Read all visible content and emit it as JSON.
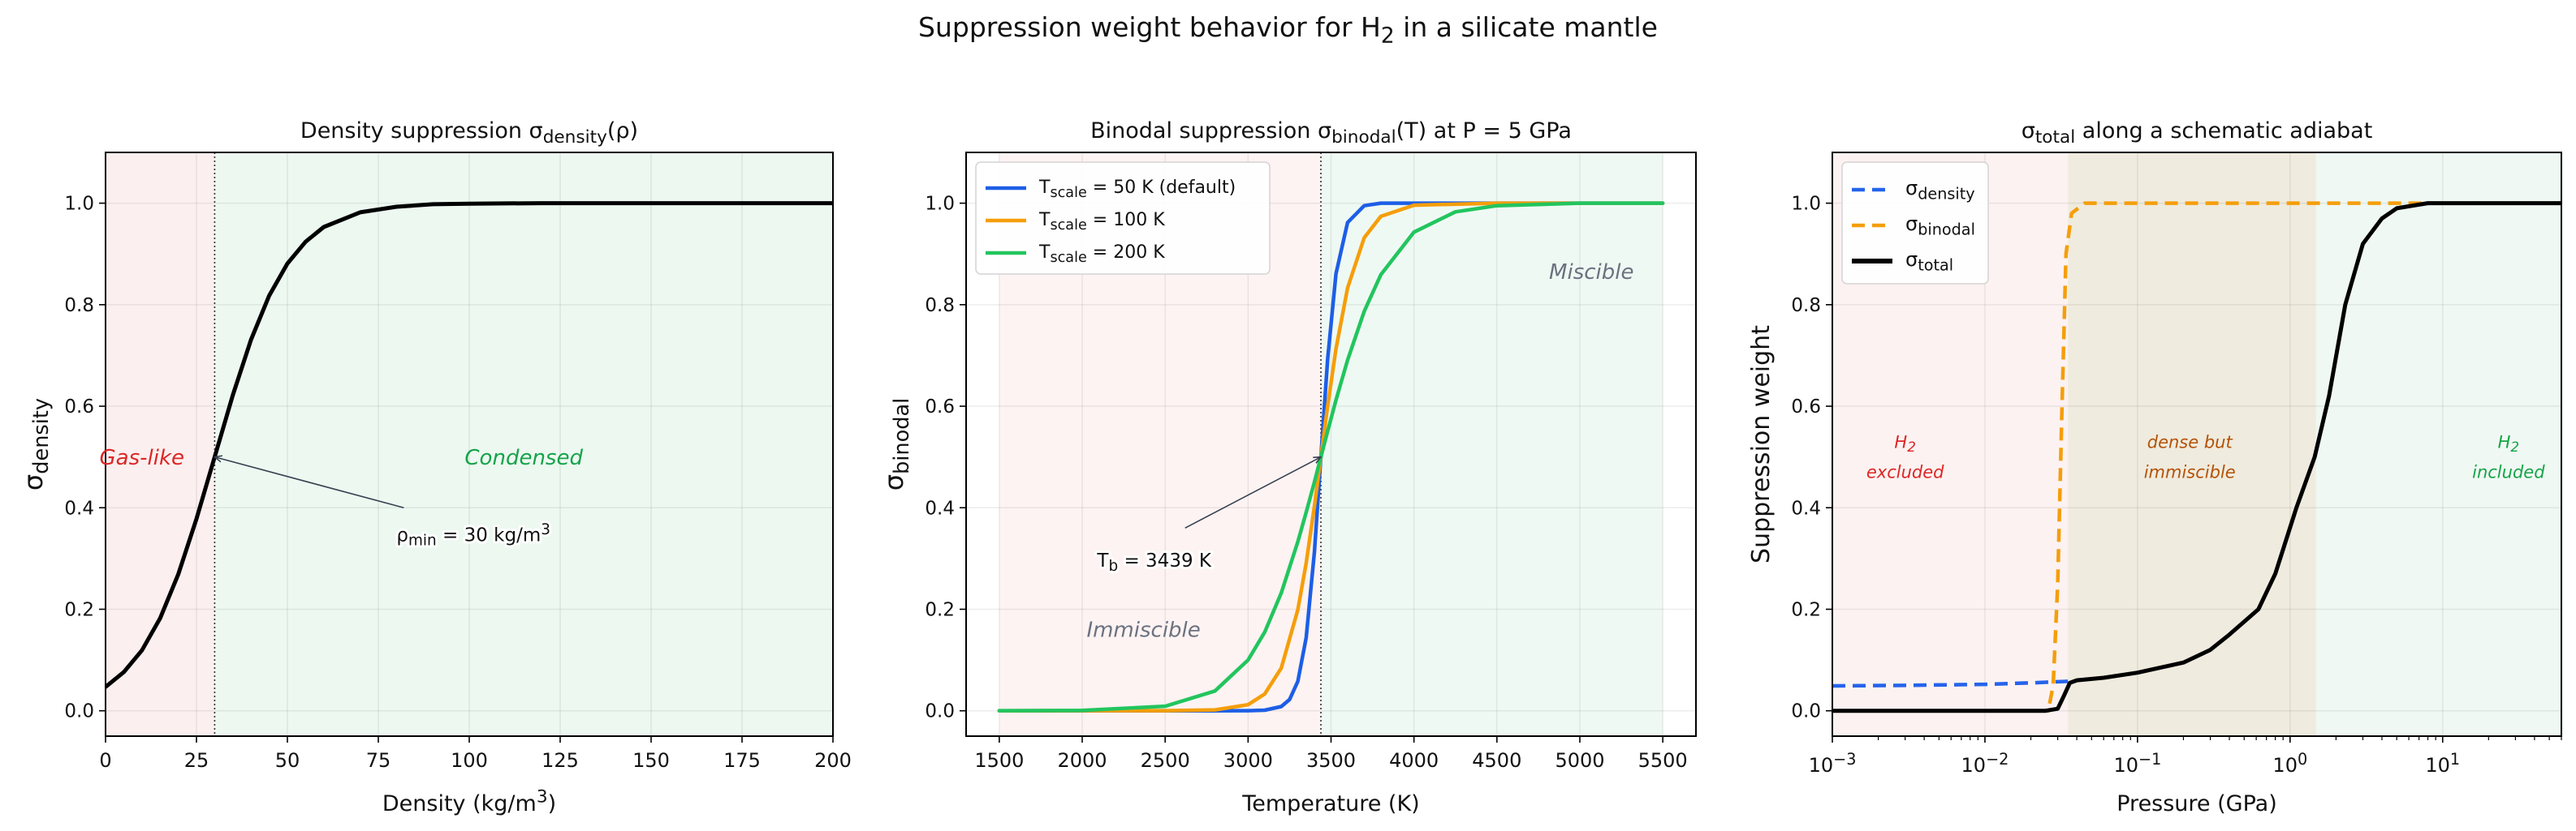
{
  "figure": {
    "title": "Suppression weight behavior for H_{2} in a silicate mantle"
  },
  "chart_data": [
    {
      "type": "line",
      "title": "Density suppression σ_{density}(ρ)",
      "xlabel": "Density (kg/m^{3})",
      "ylabel": "σ_{density}",
      "xscale": "linear",
      "xlim": [
        0,
        200
      ],
      "ylim": [
        -0.05,
        1.1
      ],
      "xticks": [
        0,
        25,
        50,
        75,
        100,
        125,
        150,
        175,
        200
      ],
      "xtick_labels": [
        "0",
        "25",
        "50",
        "75",
        "100",
        "125",
        "150",
        "175",
        "200"
      ],
      "yticks": [
        0.0,
        0.2,
        0.4,
        0.6,
        0.8,
        1.0
      ],
      "ytick_labels": [
        "0.0",
        "0.2",
        "0.4",
        "0.6",
        "0.8",
        "1.0"
      ],
      "grid": true,
      "regions": [
        {
          "from": 0,
          "to": 30,
          "color": "#fcefef"
        },
        {
          "from": 30,
          "to": 200,
          "color": "#ecf8f0"
        }
      ],
      "vlines": [
        30
      ],
      "series": [
        {
          "color": "#000000",
          "dash": "solid",
          "points": [
            [
              0,
              0.047
            ],
            [
              5,
              0.076
            ],
            [
              10,
              0.119
            ],
            [
              15,
              0.182
            ],
            [
              20,
              0.269
            ],
            [
              25,
              0.378
            ],
            [
              30,
              0.5
            ],
            [
              35,
              0.622
            ],
            [
              40,
              0.731
            ],
            [
              45,
              0.818
            ],
            [
              50,
              0.881
            ],
            [
              55,
              0.924
            ],
            [
              60,
              0.953
            ],
            [
              70,
              0.982
            ],
            [
              80,
              0.993
            ],
            [
              90,
              0.998
            ],
            [
              100,
              0.999
            ],
            [
              120,
              1.0
            ],
            [
              200,
              1.0
            ]
          ]
        }
      ],
      "region_labels": [
        {
          "lines": [
            "Gas-like"
          ],
          "x": 10,
          "y": 0.5,
          "color": "#dc2626"
        },
        {
          "lines": [
            "Condensed"
          ],
          "x": 115,
          "y": 0.5,
          "color": "#16a34a"
        }
      ],
      "annotations": [
        {
          "text": "ρ_{min} = 30 kg/m^{3}",
          "text_x": 80,
          "text_y": 0.35,
          "arrow_from": [
            82,
            0.4
          ],
          "arrow_to": [
            30,
            0.5
          ]
        }
      ]
    },
    {
      "type": "line",
      "title": "Binodal suppression σ_{binodal}(T) at P = 5 GPa",
      "xlabel": "Temperature (K)",
      "ylabel": "σ_{binodal}",
      "xscale": "linear",
      "xlim": [
        1300,
        5700
      ],
      "ylim": [
        -0.05,
        1.1
      ],
      "xticks": [
        1500,
        2000,
        2500,
        3000,
        3500,
        4000,
        4500,
        5000,
        5500
      ],
      "xtick_labels": [
        "1500",
        "2000",
        "2500",
        "3000",
        "3500",
        "4000",
        "4500",
        "5000",
        "5500"
      ],
      "yticks": [
        0.0,
        0.2,
        0.4,
        0.6,
        0.8,
        1.0
      ],
      "ytick_labels": [
        "0.0",
        "0.2",
        "0.4",
        "0.6",
        "0.8",
        "1.0"
      ],
      "grid": true,
      "regions": [
        {
          "from": 1500,
          "to": 3439,
          "color": "#fdf3f2"
        },
        {
          "from": 3439,
          "to": 5500,
          "color": "#eff9f3"
        }
      ],
      "vlines": [
        3439
      ],
      "legend": "top-left",
      "series": [
        {
          "name": "T_{scale} = 50 K (default)",
          "color": "#1d5ee6",
          "dash": "solid",
          "points": [
            [
              1500,
              0
            ],
            [
              2800,
              0
            ],
            [
              3000,
              0.0002
            ],
            [
              3100,
              0.0011
            ],
            [
              3200,
              0.0083
            ],
            [
              3250,
              0.022
            ],
            [
              3300,
              0.058
            ],
            [
              3350,
              0.144
            ],
            [
              3400,
              0.314
            ],
            [
              3439,
              0.5
            ],
            [
              3480,
              0.694
            ],
            [
              3530,
              0.861
            ],
            [
              3600,
              0.962
            ],
            [
              3700,
              0.995
            ],
            [
              3800,
              1.0
            ],
            [
              5500,
              1.0
            ]
          ]
        },
        {
          "name": "T_{scale} = 100 K",
          "color": "#f59e0b",
          "dash": "solid",
          "points": [
            [
              1500,
              0
            ],
            [
              2500,
              0.0001
            ],
            [
              2800,
              0.0017
            ],
            [
              3000,
              0.012
            ],
            [
              3100,
              0.033
            ],
            [
              3200,
              0.084
            ],
            [
              3300,
              0.199
            ],
            [
              3350,
              0.291
            ],
            [
              3400,
              0.404
            ],
            [
              3439,
              0.5
            ],
            [
              3480,
              0.601
            ],
            [
              3530,
              0.713
            ],
            [
              3600,
              0.833
            ],
            [
              3700,
              0.932
            ],
            [
              3800,
              0.974
            ],
            [
              4000,
              0.996
            ],
            [
              4500,
              1.0
            ],
            [
              5500,
              1.0
            ]
          ]
        },
        {
          "name": "T_{scale} = 200 K",
          "color": "#22c55e",
          "dash": "solid",
          "points": [
            [
              1500,
              0.0001
            ],
            [
              2000,
              0.0007
            ],
            [
              2500,
              0.009
            ],
            [
              2800,
              0.039
            ],
            [
              3000,
              0.1
            ],
            [
              3100,
              0.155
            ],
            [
              3200,
              0.232
            ],
            [
              3300,
              0.333
            ],
            [
              3350,
              0.391
            ],
            [
              3400,
              0.451
            ],
            [
              3439,
              0.5
            ],
            [
              3480,
              0.551
            ],
            [
              3530,
              0.612
            ],
            [
              3600,
              0.691
            ],
            [
              3700,
              0.787
            ],
            [
              3800,
              0.859
            ],
            [
              4000,
              0.943
            ],
            [
              4250,
              0.983
            ],
            [
              4500,
              0.995
            ],
            [
              5000,
              1.0
            ],
            [
              5500,
              1.0
            ]
          ]
        }
      ],
      "region_labels": [
        {
          "lines": [
            "Immiscible"
          ],
          "x": 2370,
          "y": 0.16,
          "color": "#6b7280"
        },
        {
          "lines": [
            "Miscible"
          ],
          "x": 5070,
          "y": 0.865,
          "color": "#6b7280"
        }
      ],
      "annotations": [
        {
          "text": "T_{b} = 3439 K",
          "text_x": 2090,
          "text_y": 0.3,
          "arrow_from": [
            2620,
            0.36
          ],
          "arrow_to": [
            3439,
            0.5
          ]
        }
      ]
    },
    {
      "type": "line",
      "title": "σ_{total} along a schematic adiabat",
      "xlabel": "Pressure (GPa)",
      "ylabel": "Suppression weight",
      "xscale": "log",
      "xlim": [
        0.001,
        60
      ],
      "ylim": [
        -0.05,
        1.1
      ],
      "xticks": [
        0.001,
        0.01,
        0.1,
        1,
        10
      ],
      "xtick_labels": [
        "10^{−3}",
        "10^{−2}",
        "10^{−1}",
        "10^{0}",
        "10^{1}"
      ],
      "yticks": [
        0.0,
        0.2,
        0.4,
        0.6,
        0.8,
        1.0
      ],
      "ytick_labels": [
        "0.0",
        "0.2",
        "0.4",
        "0.6",
        "0.8",
        "1.0"
      ],
      "grid": true,
      "regions": [
        {
          "from": 0.001,
          "to": 0.035,
          "color": "#fcf2f1"
        },
        {
          "from": 0.035,
          "to": 1.48,
          "color": "#efebde"
        },
        {
          "from": 1.48,
          "to": 60,
          "color": "#eff8f2"
        }
      ],
      "legend": "top-left",
      "series": [
        {
          "name": "σ_{density}",
          "color": "#2563eb",
          "dash": "dashed",
          "points": [
            [
              0.001,
              0.049
            ],
            [
              0.003,
              0.05
            ],
            [
              0.01,
              0.052
            ],
            [
              0.02,
              0.055
            ],
            [
              0.035,
              0.058
            ]
          ]
        },
        {
          "name": "σ_{binodal}",
          "color": "#f59e0b",
          "dash": "dashed",
          "points": [
            [
              0.001,
              0
            ],
            [
              0.02,
              0
            ],
            [
              0.026,
              0.0
            ],
            [
              0.028,
              0.05
            ],
            [
              0.03,
              0.25
            ],
            [
              0.032,
              0.6
            ],
            [
              0.034,
              0.9
            ],
            [
              0.037,
              0.98
            ],
            [
              0.045,
              1.0
            ],
            [
              60,
              1.0
            ]
          ]
        },
        {
          "name": "σ_{total}",
          "color": "#000000",
          "dash": "solid",
          "points": [
            [
              0.001,
              0
            ],
            [
              0.025,
              0
            ],
            [
              0.03,
              0.004
            ],
            [
              0.033,
              0.03
            ],
            [
              0.036,
              0.055
            ],
            [
              0.04,
              0.06
            ],
            [
              0.06,
              0.065
            ],
            [
              0.1,
              0.075
            ],
            [
              0.2,
              0.095
            ],
            [
              0.3,
              0.12
            ],
            [
              0.4,
              0.15
            ],
            [
              0.62,
              0.2
            ],
            [
              0.8,
              0.27
            ],
            [
              1.1,
              0.4
            ],
            [
              1.45,
              0.5
            ],
            [
              1.8,
              0.62
            ],
            [
              2.3,
              0.8
            ],
            [
              3,
              0.92
            ],
            [
              4,
              0.97
            ],
            [
              5,
              0.99
            ],
            [
              8,
              1.0
            ],
            [
              60,
              1.0
            ]
          ]
        }
      ],
      "region_labels": [
        {
          "lines": [
            "H_{2}",
            "excluded"
          ],
          "x": 0.003,
          "y": 0.5,
          "color": "#dc2626"
        },
        {
          "lines": [
            "dense but",
            "immiscible"
          ],
          "x": 0.22,
          "y": 0.5,
          "color": "#b45309"
        },
        {
          "lines": [
            "H_{2}",
            "included"
          ],
          "x": 27,
          "y": 0.5,
          "color": "#16a34a"
        }
      ],
      "annotations": []
    }
  ]
}
